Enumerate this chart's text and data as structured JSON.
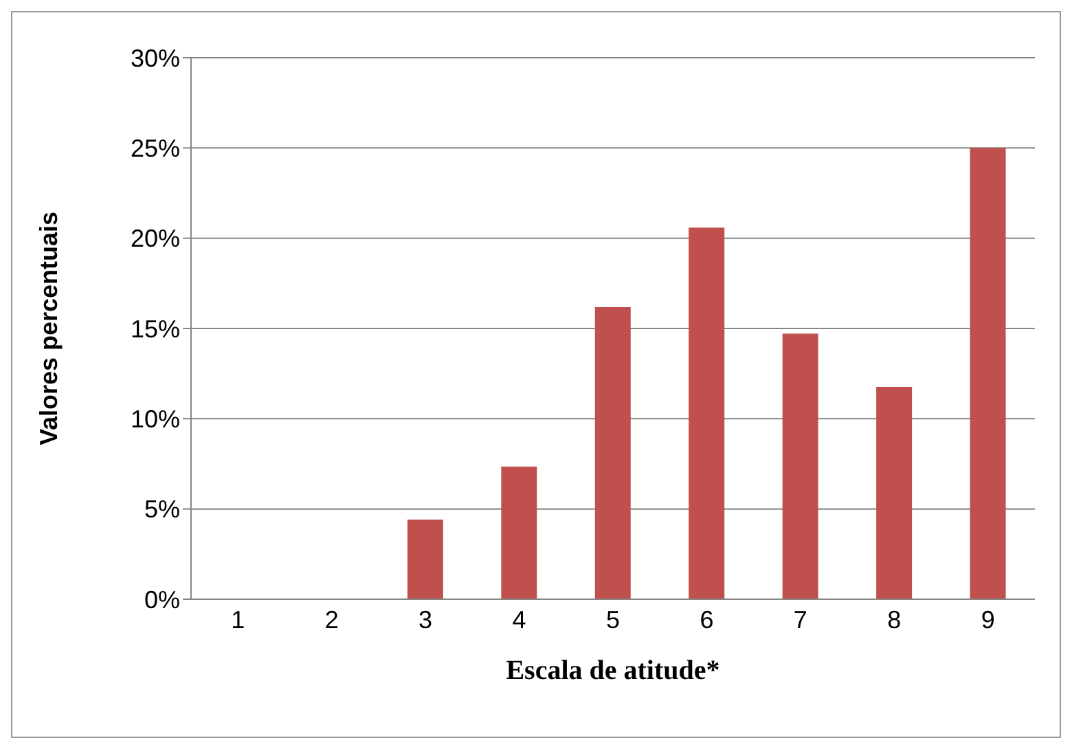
{
  "chart_data": {
    "type": "bar",
    "xlabel": "Escala de atitude*",
    "ylabel": "Valores percentuais",
    "categories": [
      "1",
      "2",
      "3",
      "4",
      "5",
      "6",
      "7",
      "8",
      "9"
    ],
    "values": [
      0,
      0,
      4.41,
      7.35,
      16.18,
      20.59,
      14.71,
      11.76,
      25.0
    ],
    "color": "#c0504d",
    "ylim": [
      0,
      30
    ],
    "yticks": [
      {
        "value": 0,
        "label": "0%"
      },
      {
        "value": 5,
        "label": "5%"
      },
      {
        "value": 10,
        "label": "10%"
      },
      {
        "value": 15,
        "label": "15%"
      },
      {
        "value": 20,
        "label": "20%"
      },
      {
        "value": 25,
        "label": "25%"
      },
      {
        "value": 30,
        "label": "30%"
      }
    ],
    "grid": "y",
    "legend": false
  }
}
